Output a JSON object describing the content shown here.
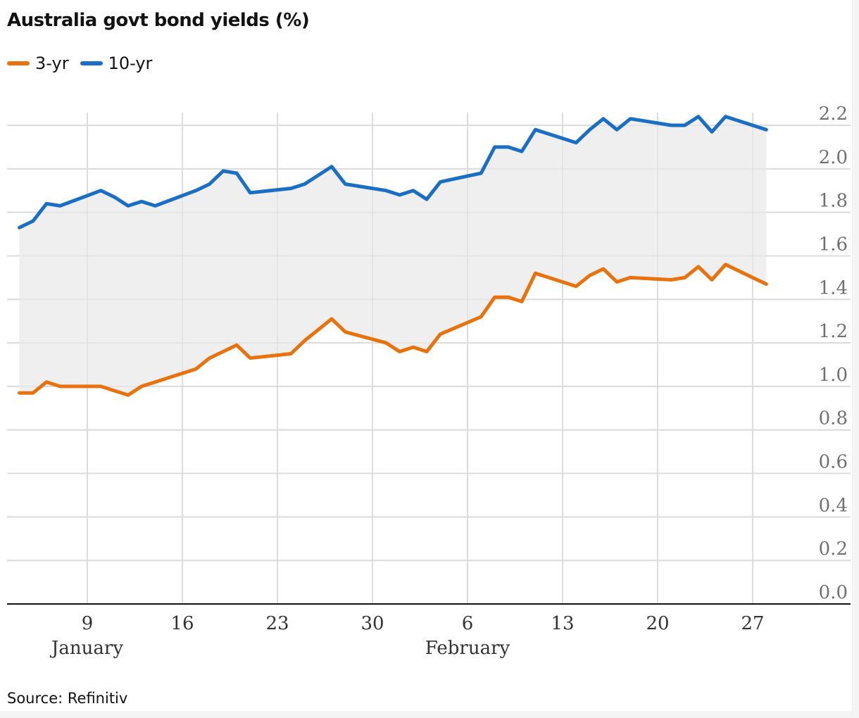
{
  "title": "Australia govt bond yields (%)",
  "source": "Source: Refinitiv",
  "colors": {
    "series_3yr": "#e8730e",
    "series_10yr": "#1a6ec4",
    "band": "#efefef",
    "grid": "#dcdcdc",
    "axis": "#121212",
    "tick_text": "#707070",
    "x_tick_text": "#333333"
  },
  "chart_data": {
    "type": "line",
    "title": "Australia govt bond yields (%)",
    "xlabel": "",
    "ylabel": "",
    "ylim": [
      0,
      2.2
    ],
    "y_ticks": [
      "0.0",
      "0.2",
      "0.4",
      "0.6",
      "0.8",
      "1.0",
      "1.2",
      "1.4",
      "1.6",
      "1.8",
      "2.0",
      "2.2"
    ],
    "x_ticks": [
      {
        "date": "2022-01-09",
        "label": "9",
        "month": "January"
      },
      {
        "date": "2022-01-16",
        "label": "16"
      },
      {
        "date": "2022-01-23",
        "label": "23"
      },
      {
        "date": "2022-01-30",
        "label": "30"
      },
      {
        "date": "2022-02-06",
        "label": "6",
        "month": "February"
      },
      {
        "date": "2022-02-13",
        "label": "13"
      },
      {
        "date": "2022-02-20",
        "label": "20"
      },
      {
        "date": "2022-02-27",
        "label": "27"
      }
    ],
    "x": [
      "2022-01-04",
      "2022-01-05",
      "2022-01-06",
      "2022-01-07",
      "2022-01-10",
      "2022-01-11",
      "2022-01-12",
      "2022-01-13",
      "2022-01-14",
      "2022-01-17",
      "2022-01-18",
      "2022-01-19",
      "2022-01-20",
      "2022-01-21",
      "2022-01-24",
      "2022-01-25",
      "2022-01-27",
      "2022-01-28",
      "2022-01-31",
      "2022-02-01",
      "2022-02-02",
      "2022-02-03",
      "2022-02-04",
      "2022-02-07",
      "2022-02-08",
      "2022-02-09",
      "2022-02-10",
      "2022-02-11",
      "2022-02-14",
      "2022-02-15",
      "2022-02-16",
      "2022-02-17",
      "2022-02-18",
      "2022-02-21",
      "2022-02-22",
      "2022-02-23",
      "2022-02-24",
      "2022-02-25",
      "2022-02-28"
    ],
    "legend_position": "top-left",
    "series": [
      {
        "name": "3-yr",
        "color": "#e8730e",
        "values": [
          0.97,
          0.97,
          1.02,
          1.0,
          1.0,
          0.98,
          0.96,
          1.0,
          1.02,
          1.08,
          1.13,
          1.16,
          1.19,
          1.13,
          1.15,
          1.21,
          1.31,
          1.25,
          1.2,
          1.16,
          1.18,
          1.16,
          1.24,
          1.32,
          1.41,
          1.41,
          1.39,
          1.52,
          1.46,
          1.51,
          1.54,
          1.48,
          1.5,
          1.49,
          1.5,
          1.55,
          1.49,
          1.56,
          1.47
        ]
      },
      {
        "name": "10-yr",
        "color": "#1a6ec4",
        "values": [
          1.73,
          1.76,
          1.84,
          1.83,
          1.9,
          1.87,
          1.83,
          1.85,
          1.83,
          1.9,
          1.93,
          1.99,
          1.98,
          1.89,
          1.91,
          1.93,
          2.01,
          1.93,
          1.9,
          1.88,
          1.9,
          1.86,
          1.94,
          1.98,
          2.1,
          2.1,
          2.08,
          2.18,
          2.12,
          2.18,
          2.23,
          2.18,
          2.23,
          2.2,
          2.2,
          2.24,
          2.17,
          2.24,
          2.18
        ]
      }
    ],
    "shaded_band_between_series": true,
    "grid": true
  }
}
